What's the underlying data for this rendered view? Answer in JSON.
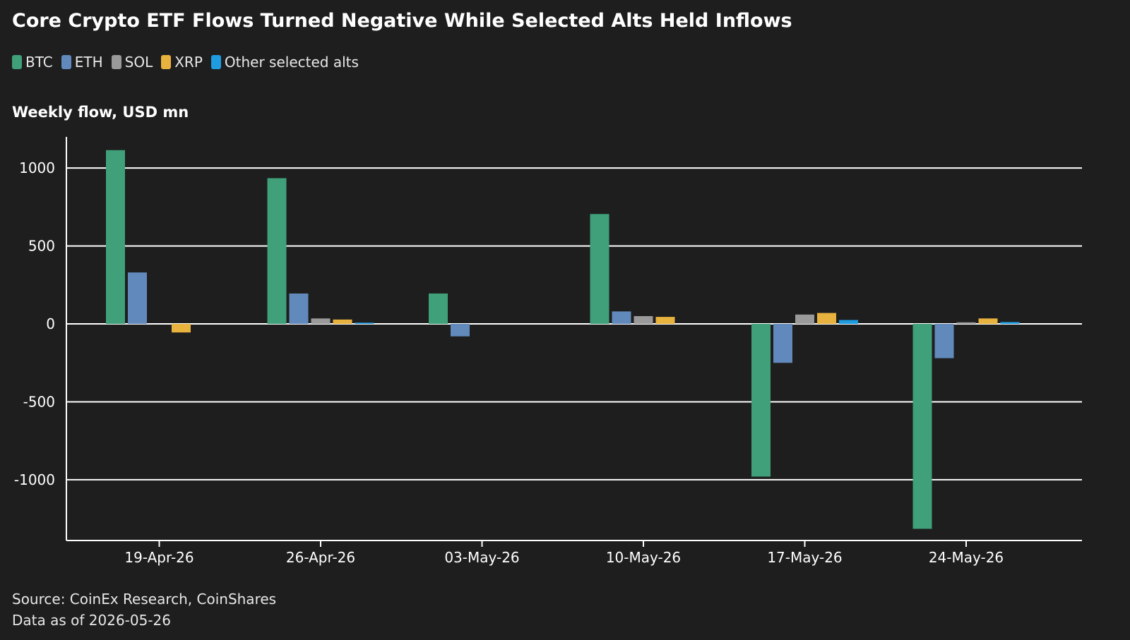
{
  "title": "Core Crypto ETF Flows Turned Negative While Selected Alts Held Inflows",
  "source_line1": "Source: CoinEx Research, CoinShares",
  "source_line2": "Data as of 2026-05-26",
  "chart_data": {
    "type": "bar",
    "title": "Core Crypto ETF Flows Turned Negative While Selected Alts Held Inflows",
    "ylabel": "Weekly flow, USD mn",
    "xlabel": "",
    "categories": [
      "19-Apr-26",
      "26-Apr-26",
      "03-May-26",
      "10-May-26",
      "17-May-26",
      "24-May-26"
    ],
    "ylim": [
      -1390,
      1200
    ],
    "yticks": [
      1000,
      500,
      0,
      -500,
      -1000
    ],
    "grid": true,
    "legend_position": "top-left",
    "series": [
      {
        "name": "BTC",
        "color": "#3fa07a",
        "values": [
          1115,
          935,
          195,
          705,
          -980,
          -1315
        ]
      },
      {
        "name": "ETH",
        "color": "#6189bb",
        "values": [
          330,
          195,
          -80,
          80,
          -250,
          -220
        ]
      },
      {
        "name": "SOL",
        "color": "#9a9a9a",
        "values": [
          0,
          35,
          0,
          50,
          60,
          10
        ]
      },
      {
        "name": "XRP",
        "color": "#e8b23e",
        "values": [
          -55,
          28,
          0,
          45,
          70,
          35
        ]
      },
      {
        "name": "Other selected alts",
        "color": "#1f9ce0",
        "values": [
          0,
          8,
          0,
          0,
          25,
          12
        ]
      }
    ]
  }
}
